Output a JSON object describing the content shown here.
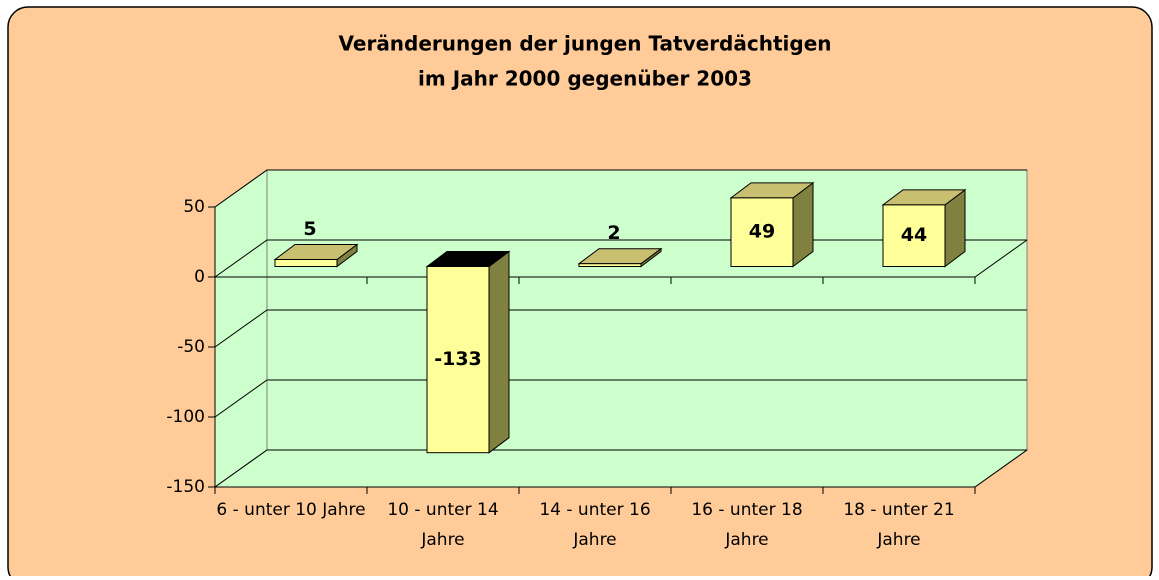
{
  "chart_data": {
    "type": "bar",
    "title": "Veränderungen der jungen Tatverdächtigen",
    "subtitle": "im Jahr 2000 gegenüber 2003",
    "categories": [
      "6 - unter 10 Jahre",
      "10 - unter 14 Jahre",
      "14 - unter 16 Jahre",
      "16 - unter 18 Jahre",
      "18 - unter 21 Jahre"
    ],
    "values": [
      5,
      -133,
      2,
      49,
      44
    ],
    "color": "#ffff99",
    "ylim": [
      -150,
      50
    ],
    "yticks": [
      -150,
      -100,
      -50,
      0,
      50
    ],
    "grid": true
  }
}
